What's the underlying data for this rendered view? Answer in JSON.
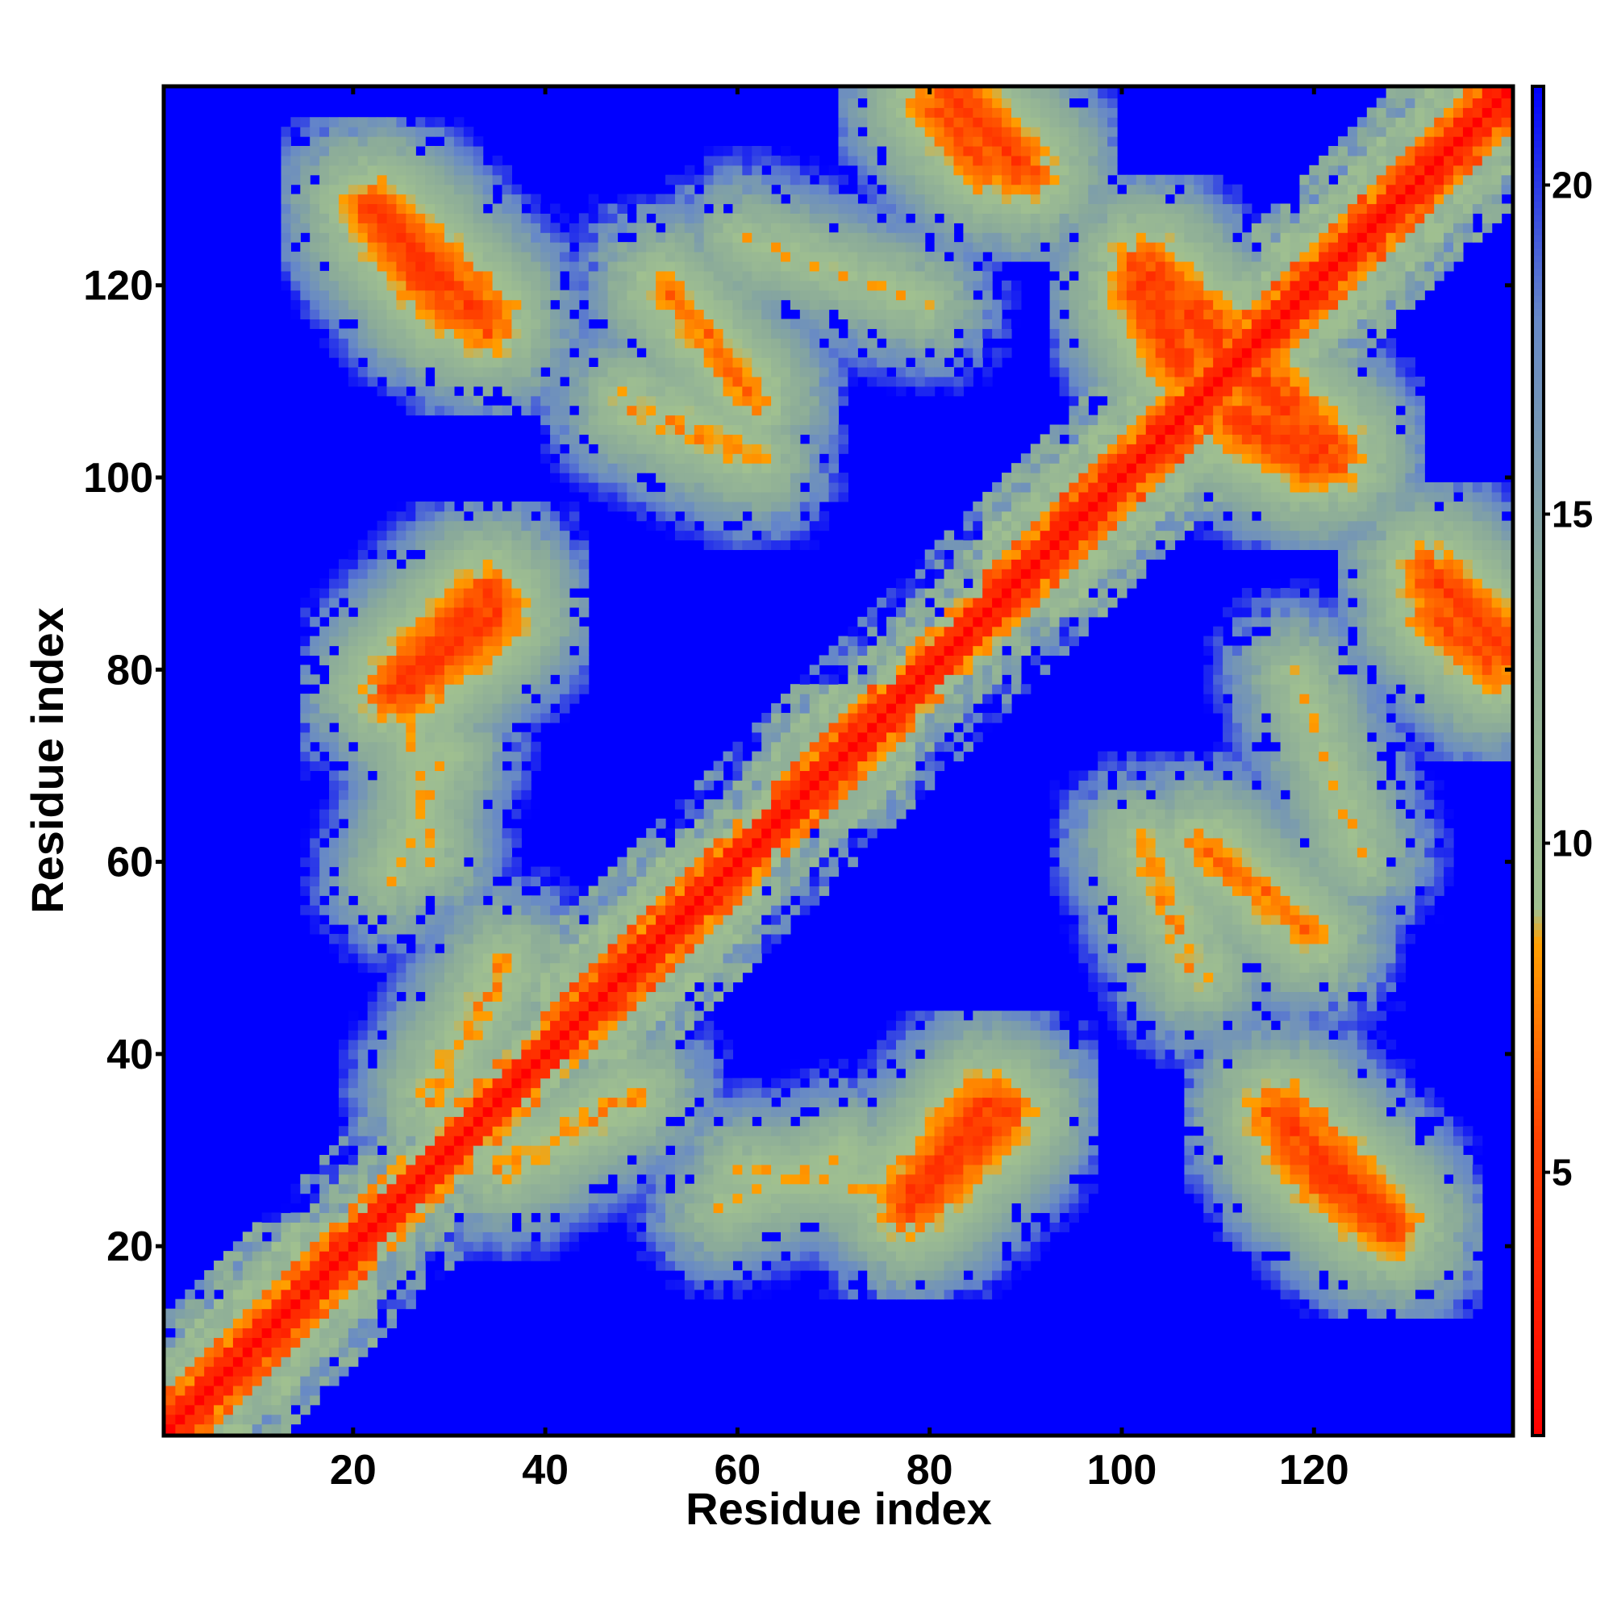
{
  "chart_data": {
    "type": "heatmap",
    "title": "",
    "xlabel": "Residue index",
    "ylabel": "Residue index",
    "n_residues": 140,
    "xlim": [
      1,
      140
    ],
    "ylim": [
      1,
      140
    ],
    "x_ticks": [
      20,
      40,
      60,
      80,
      100,
      120
    ],
    "y_ticks": [
      20,
      40,
      60,
      80,
      100,
      120
    ],
    "colorbar": {
      "range": [
        1,
        21.5
      ],
      "ticks": [
        5,
        10,
        15,
        20
      ],
      "palette": [
        {
          "value": 1,
          "color": "#ff0000"
        },
        {
          "value": 5.5,
          "color": "#ff4000"
        },
        {
          "value": 8.5,
          "color": "#ffa000"
        },
        {
          "value": 9,
          "color": "#a0c090"
        },
        {
          "value": 14,
          "color": "#8aaa9a"
        },
        {
          "value": 18,
          "color": "#6688c8"
        },
        {
          "value": 21.5,
          "color": "#0000ff"
        }
      ],
      "background_color": "#0000ff"
    },
    "description_bands": {
      "diagonal": "near-zero distance along i=j (red), orange/green halo within ~12 residues",
      "helix_segments": [
        [
          1,
          22
        ],
        [
          40,
          62
        ],
        [
          64,
          78
        ],
        [
          86,
          110
        ],
        [
          112,
          140
        ]
      ]
    },
    "contact_features": [
      {
        "x": [
          22,
          30
        ],
        "y": [
          128,
          118
        ],
        "level": 6
      },
      {
        "x": [
          25,
          35
        ],
        "y": [
          78,
          86
        ],
        "level": 6
      },
      {
        "x": [
          24,
          30
        ],
        "y": [
          58,
          72
        ],
        "level": 10
      },
      {
        "x": [
          35,
          50
        ],
        "y": [
          28,
          36
        ],
        "level": 9
      },
      {
        "x": [
          60,
          75
        ],
        "y": [
          28,
          26
        ],
        "level": 10
      },
      {
        "x": [
          78,
          88
        ],
        "y": [
          24,
          34
        ],
        "level": 6
      },
      {
        "x": [
          102,
          112
        ],
        "y": [
          122,
          112
        ],
        "level": 6
      },
      {
        "x": [
          112,
          120
        ],
        "y": [
          106,
          102
        ],
        "level": 6
      },
      {
        "x": [
          116,
          126
        ],
        "y": [
          34,
          24
        ],
        "level": 6
      },
      {
        "x": [
          82,
          90
        ],
        "y": [
          140,
          132
        ],
        "level": 6
      },
      {
        "x": [
          132,
          139
        ],
        "y": [
          86,
          80
        ],
        "level": 7
      },
      {
        "x": [
          60,
          80
        ],
        "y": [
          125,
          118
        ],
        "level": 10
      },
      {
        "x": [
          48,
          62
        ],
        "y": [
          108,
          102
        ],
        "level": 9
      },
      {
        "x": [
          108,
          120
        ],
        "y": [
          62,
          52
        ],
        "level": 8
      }
    ]
  }
}
